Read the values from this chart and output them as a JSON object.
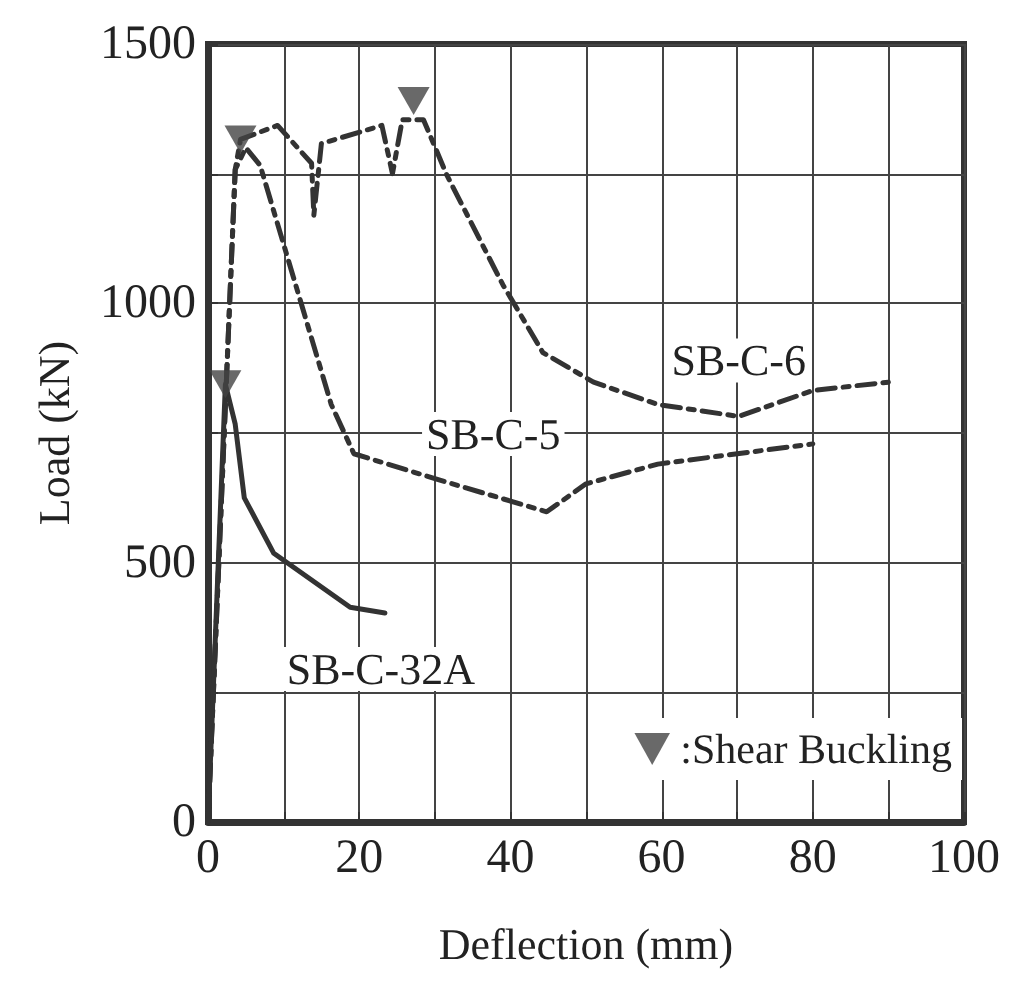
{
  "chart_data": {
    "type": "line",
    "xlabel": "Deflection (mm)",
    "ylabel": "Load (kN)",
    "xlim": [
      0,
      100
    ],
    "ylim": [
      0,
      1500
    ],
    "xticks": [
      0,
      {
        "value": 10,
        "label": null
      },
      20,
      {
        "value": 30,
        "label": null
      },
      40,
      {
        "value": 50,
        "label": null
      },
      60,
      {
        "value": 70,
        "label": null
      },
      80,
      {
        "value": 90,
        "label": null
      },
      100
    ],
    "yticks": [
      0,
      {
        "value": 250,
        "label": null
      },
      500,
      {
        "value": 750,
        "label": null
      },
      1000,
      {
        "value": 1250,
        "label": null
      },
      1500
    ],
    "grid": true,
    "legend": "bottom right",
    "marker": "none",
    "series": [
      {
        "name": "SB-C-6",
        "color": "#333333",
        "line_style": "dashed",
        "x": [
          0,
          3.6,
          4.3,
          9.2,
          13.7,
          14,
          15,
          23,
          24.4,
          25.7,
          28.5,
          31.6,
          39,
          44.3,
          51,
          59.5,
          70.2,
          80,
          90
        ],
        "values": [
          0,
          1258,
          1316,
          1343,
          1270,
          1170,
          1308,
          1343,
          1250,
          1354,
          1354,
          1247,
          1036,
          905,
          848,
          805,
          782,
          832,
          848
        ]
      },
      {
        "name": "SB-C-5",
        "color": "#333333",
        "line_style": "dashed",
        "x": [
          0,
          3.6,
          5,
          6.9,
          16.3,
          19.3,
          29.8,
          44.8,
          50,
          59.5,
          80
        ],
        "values": [
          0,
          1258,
          1300,
          1266,
          805,
          710,
          663,
          598,
          652,
          690,
          729
        ]
      },
      {
        "name": "SB-C-32A",
        "color": "#333333",
        "line_style": "solid",
        "x": [
          0,
          2.3,
          3.6,
          4.8,
          8.7,
          18.8,
          23.4
        ],
        "values": [
          0,
          844,
          767,
          625,
          518,
          414,
          403
        ]
      },
      {
        "name": ":Shear Buckling",
        "type": "scatter",
        "color": "#444444",
        "marker": "triangle",
        "x": [
          4.3,
          27.2,
          2.3
        ],
        "values": [
          1316,
          1390,
          844
        ]
      }
    ]
  }
}
